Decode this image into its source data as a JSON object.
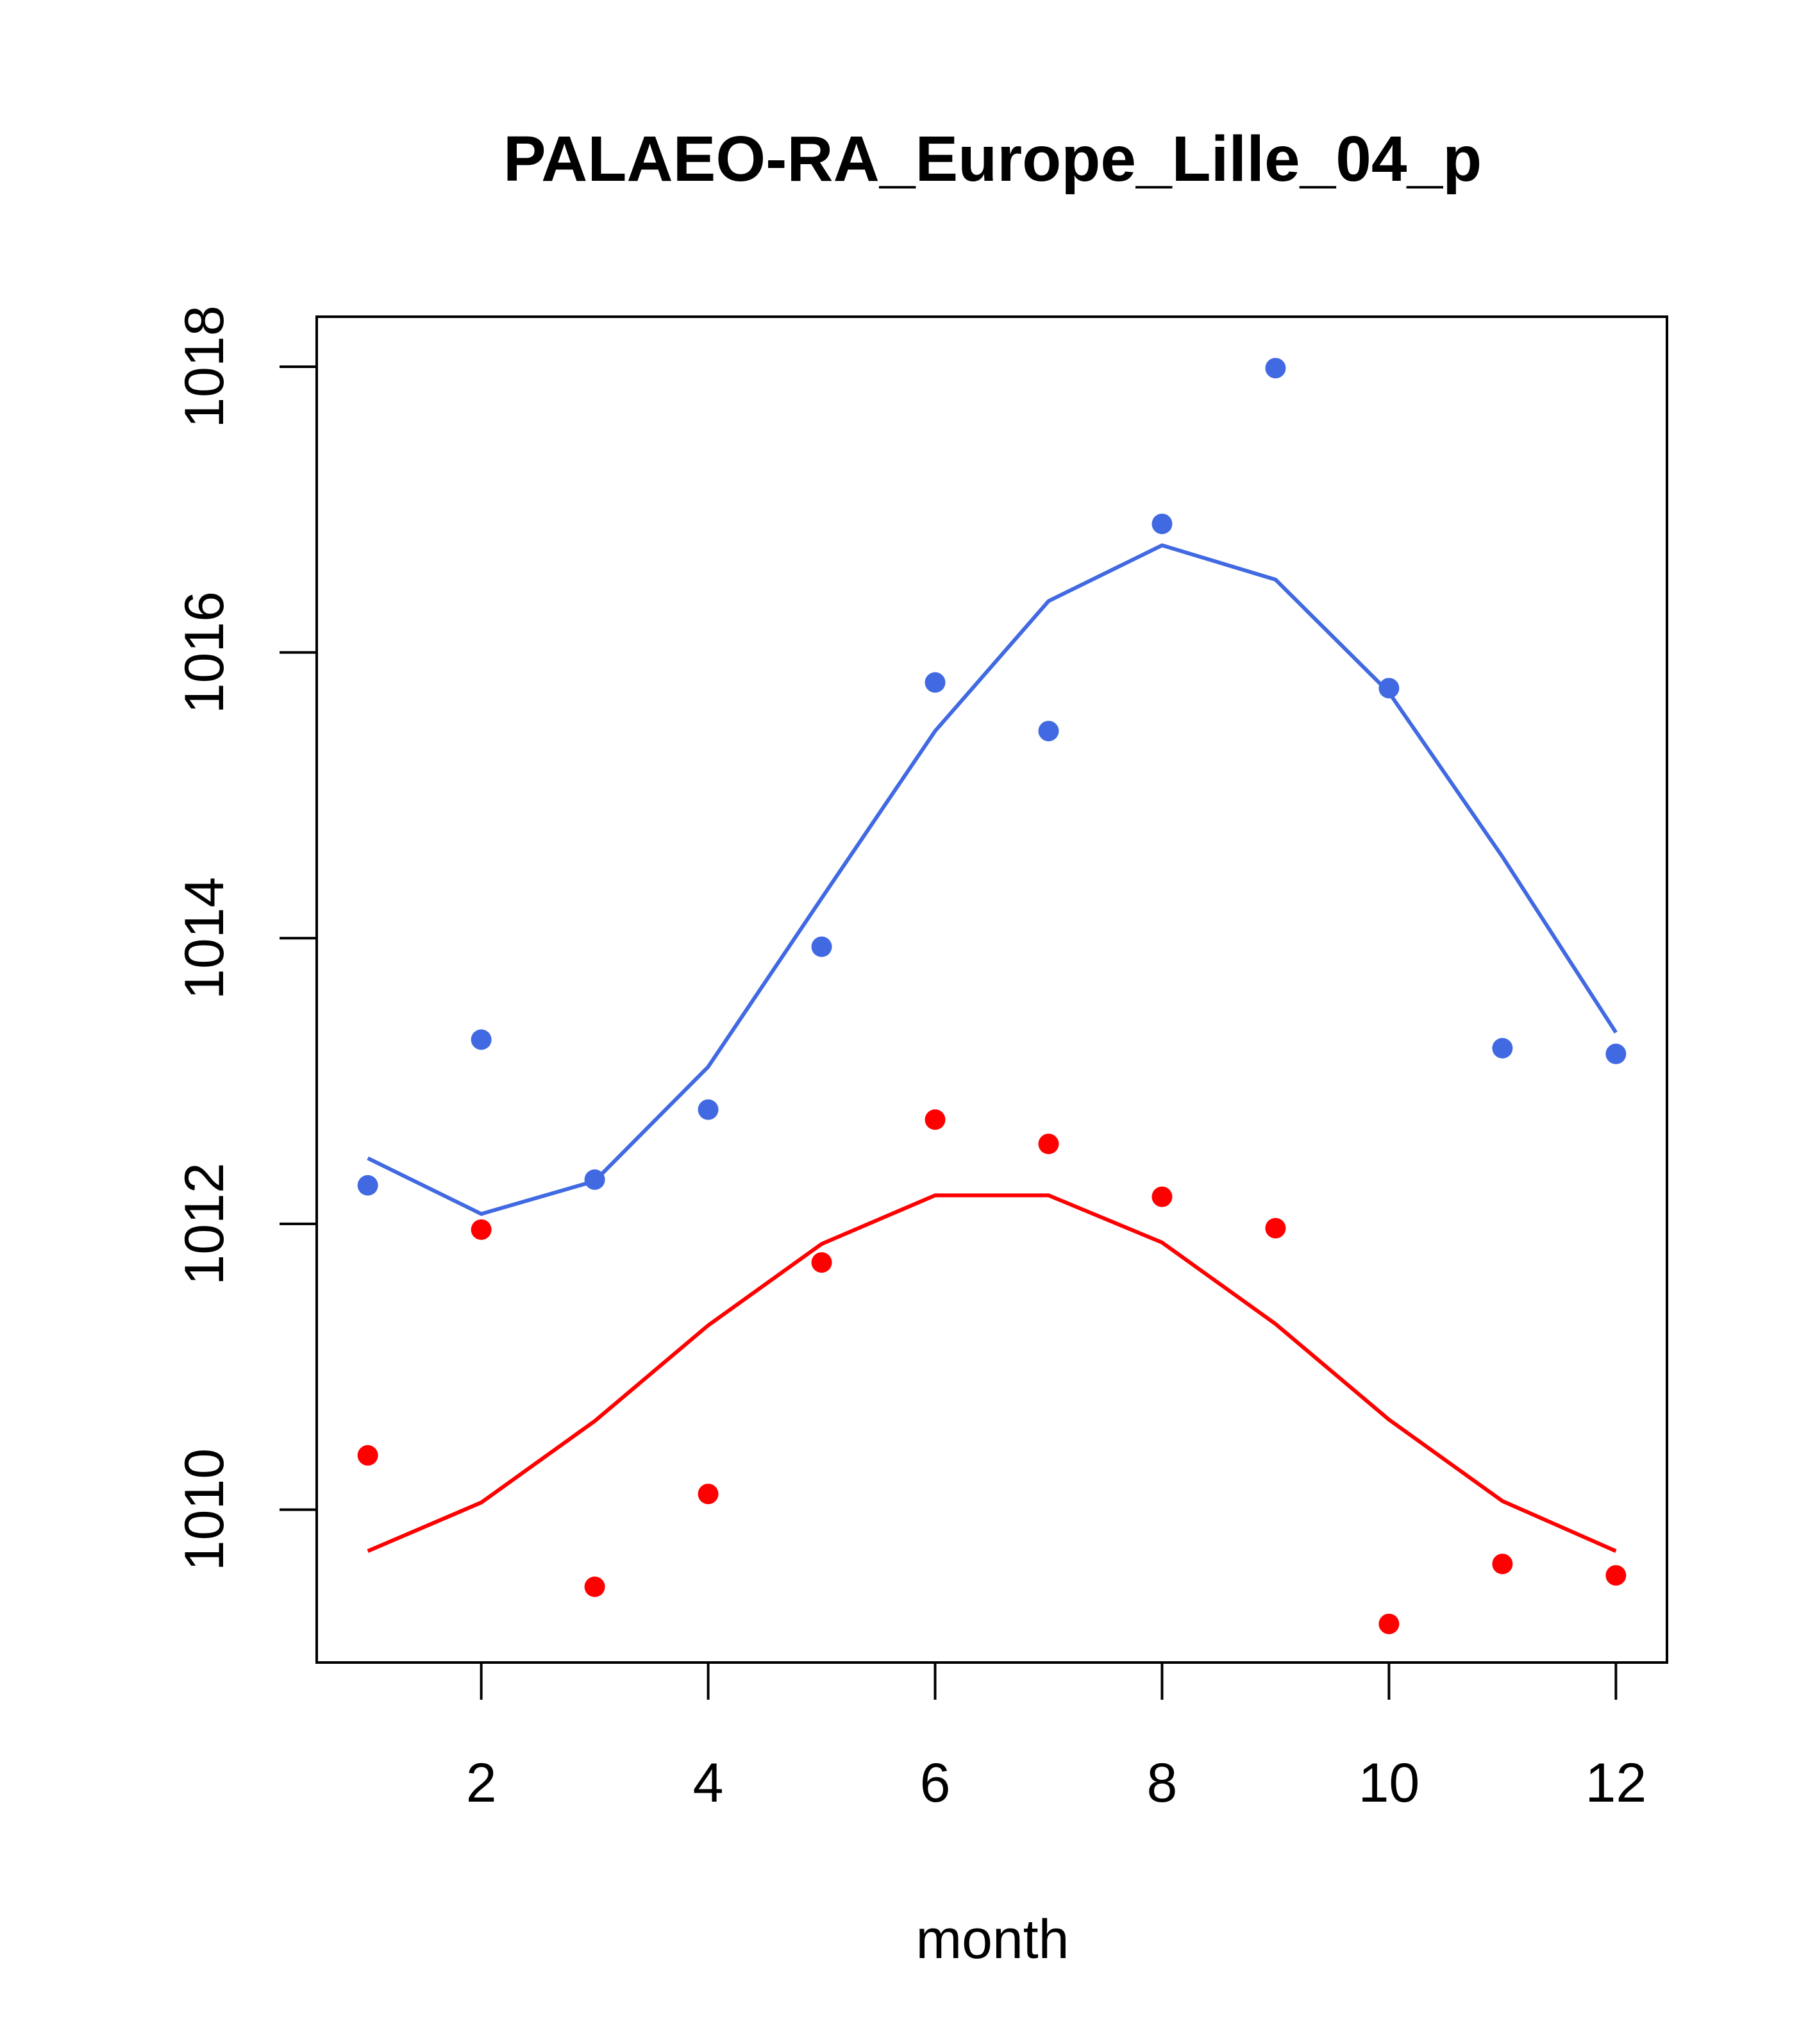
{
  "chart_data": {
    "type": "line",
    "title": "PALAEO-RA_Europe_Lille_04_p",
    "xlabel": "month",
    "ylabel": "",
    "x": [
      1,
      2,
      3,
      4,
      5,
      6,
      7,
      8,
      9,
      10,
      11,
      12
    ],
    "xlim": [
      0.55,
      12.45
    ],
    "ylim": [
      1008.93,
      1018.35
    ],
    "x_ticks": [
      2,
      4,
      6,
      8,
      10,
      12
    ],
    "y_ticks": [
      1010,
      1012,
      1014,
      1016,
      1018
    ],
    "x_tick_labels": [
      "2",
      "4",
      "6",
      "8",
      "10",
      "12"
    ],
    "y_tick_labels": [
      "1010",
      "1012",
      "1014",
      "1016",
      "1018"
    ],
    "grid": false,
    "series": [
      {
        "name": "blue-points",
        "kind": "points",
        "color": "#4169E1",
        "values": [
          1012.27,
          1013.29,
          1012.31,
          1012.8,
          1013.94,
          1015.79,
          1015.45,
          1016.9,
          1017.99,
          1015.75,
          1013.23,
          1013.19
        ]
      },
      {
        "name": "blue-line",
        "kind": "line",
        "color": "#4169E1",
        "values": [
          1012.46,
          1012.07,
          1012.3,
          1013.1,
          1014.28,
          1015.45,
          1016.36,
          1016.75,
          1016.51,
          1015.72,
          1014.57,
          1013.34
        ]
      },
      {
        "name": "red-points",
        "kind": "points",
        "color": "#FF0000",
        "values": [
          1010.38,
          1011.96,
          1009.46,
          1010.11,
          1011.73,
          1012.73,
          1012.56,
          1012.19,
          1011.97,
          1009.2,
          1009.62,
          1009.54
        ]
      },
      {
        "name": "red-line",
        "kind": "line",
        "color": "#FF0000",
        "values": [
          1009.71,
          1010.05,
          1010.62,
          1011.29,
          1011.86,
          1012.2,
          1012.2,
          1011.87,
          1011.3,
          1010.63,
          1010.06,
          1009.71
        ]
      }
    ]
  }
}
